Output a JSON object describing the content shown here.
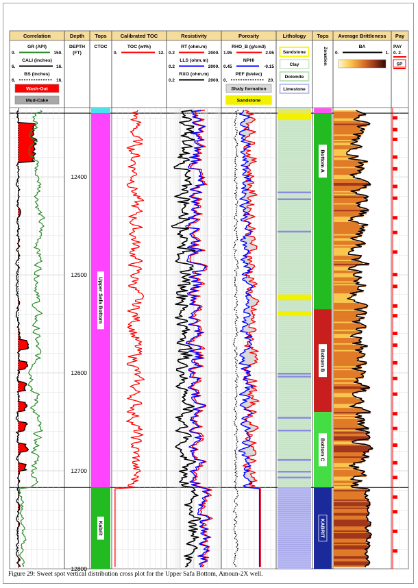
{
  "chart_data": {
    "type": "line",
    "tracks": [
      {
        "title": "Correlation",
        "curves": [
          {
            "name": "GR (API)",
            "min": "0.",
            "max": "150.",
            "color": "#2a8a2a"
          },
          {
            "name": "CALI (inches)",
            "min": "6.",
            "max": "16.",
            "color": "#000000"
          },
          {
            "name": "BS (inches)",
            "min": "6.",
            "max": "16.",
            "color": "#000000",
            "dashed": true
          }
        ],
        "legend_boxes": [
          {
            "label": "Wash-Out",
            "color": "#ff0000",
            "text_color": "#ffffff"
          },
          {
            "label": "Mud-Cake",
            "color": "#a8a8a8",
            "text_color": "#000000"
          }
        ]
      },
      {
        "title": "Depth",
        "curves": [
          {
            "name": "DEPTH",
            "min": "",
            "max": "",
            "unit": "(FT)"
          }
        ]
      },
      {
        "title": "Tops",
        "curves": [
          {
            "name": "CTOC",
            "min": "",
            "max": ""
          }
        ]
      },
      {
        "title": "Calibrated TOC",
        "curves": [
          {
            "name": "TOC (wt%)",
            "min": "0.",
            "max": "12.",
            "color": "#ff0000"
          }
        ]
      },
      {
        "title": "Resistivity",
        "curves": [
          {
            "name": "RT (ohm.m)",
            "min": "0.2",
            "max": "2000.",
            "color": "#ff0000"
          },
          {
            "name": "LLS (ohm.m)",
            "min": "0.2",
            "max": "2000.",
            "color": "#0000ff"
          },
          {
            "name": "RXO (ohm.m)",
            "min": "0.2",
            "max": "2000.",
            "color": "#000000"
          }
        ]
      },
      {
        "title": "Porosity",
        "curves": [
          {
            "name": "RHO_B (g/cm3)",
            "min": "1.95",
            "max": "2.95",
            "color": "#ff0000"
          },
          {
            "name": "NPHI",
            "min": "0.45",
            "max": "-0.15",
            "color": "#0000ff"
          },
          {
            "name": "PEF (b/elec)",
            "min": "0.",
            "max": "20.",
            "color": "#000000",
            "dashed": true
          }
        ],
        "legend_boxes": [
          {
            "label": "Shaly formation",
            "color": "#d9d9d9",
            "text_color": "#000000"
          },
          {
            "label": "Sandstone",
            "color": "#f2f200",
            "text_color": "#000000"
          }
        ]
      },
      {
        "title": "Lithology",
        "legend_boxes": [
          {
            "label": "Sandstone",
            "color": "#f7f700"
          },
          {
            "label": "Clay",
            "color": "#cfe8cf"
          },
          {
            "label": "Dolomite",
            "color": "#b8e0b8"
          },
          {
            "label": "Limestone",
            "color": "#b8b8f0"
          }
        ]
      },
      {
        "title": "Tops",
        "curves": [
          {
            "name": "Zonation",
            "min": "",
            "max": ""
          }
        ]
      },
      {
        "title": "Average Brittleness",
        "curves": [
          {
            "name": "BA",
            "min": "0.",
            "max": "1.",
            "color": "#000000"
          }
        ]
      },
      {
        "title": "Pay",
        "curves": [
          {
            "name": "PAY",
            "min": "0.",
            "max": "2.",
            "color": "#ff0000"
          },
          {
            "name": "SP",
            "min": "",
            "max": "",
            "color": "#ff0000"
          }
        ]
      }
    ],
    "depth_axis": {
      "ticks": [
        12400,
        12500,
        12600,
        12700,
        12800
      ],
      "range": [
        12330,
        12800
      ],
      "inverted": true
    },
    "ctoc_zones": [
      {
        "label": "Upper Safa Bottom",
        "top": 12335,
        "base": 12717,
        "color": "#ff44ff"
      },
      {
        "label": "Kabrit",
        "top": 12717,
        "base": 12800,
        "color": "#22bb22"
      }
    ],
    "zones": [
      {
        "label": "Bottom A",
        "top": 12335,
        "base": 12535,
        "color": "#22bb22"
      },
      {
        "label": "Bottom B",
        "top": 12535,
        "base": 12640,
        "color": "#c81e1e"
      },
      {
        "label": "Bottom C",
        "top": 12640,
        "base": 12717,
        "color": "#44dd44"
      },
      {
        "label": "KABRIT",
        "top": 12717,
        "base": 12800,
        "color": "#1a2a9a"
      }
    ]
  },
  "caption": "Figure 29: Sweet spot vertical distribution cross plot for the Upper Safa Bottom, Amoun-2X well."
}
